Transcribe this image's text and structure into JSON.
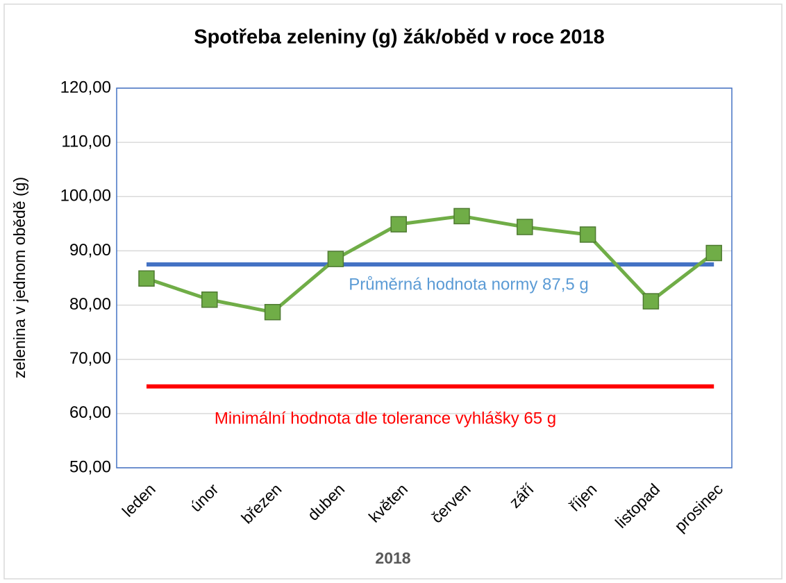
{
  "chart_data": {
    "type": "line",
    "title": "Spotřeba zeleniny (g) žák/oběd v roce 2018",
    "x_label": "2018",
    "y_label": "zelenina v jednom obědě (g)",
    "categories": [
      "leden",
      "únor",
      "březen",
      "duben",
      "květen",
      "červen",
      "září",
      "říjen",
      "listopad",
      "prosinec"
    ],
    "series": [
      {
        "name": "zelenina",
        "color": "#70ad47",
        "values": [
          84.9,
          81.0,
          78.7,
          88.5,
          94.9,
          96.4,
          94.4,
          93.0,
          80.7,
          89.6
        ]
      }
    ],
    "reference_lines": [
      {
        "value": 87.5,
        "label": "Průměrná hodnota normy 87,5 g",
        "color": "#4472c4",
        "label_color": "#5b9bd5"
      },
      {
        "value": 65,
        "label": "Minimální hodnota dle tolerance vyhlášky 65 g",
        "color": "#ff0000",
        "label_color": "#ff0000"
      }
    ],
    "ylim": [
      50,
      120
    ],
    "yticks": [
      {
        "value": 50,
        "label": "50,00"
      },
      {
        "value": 60,
        "label": "60,00"
      },
      {
        "value": 70,
        "label": "70,00"
      },
      {
        "value": 80,
        "label": "80,00"
      },
      {
        "value": 90,
        "label": "90,00"
      },
      {
        "value": 100,
        "label": "100,00"
      },
      {
        "value": 110,
        "label": "110,00"
      },
      {
        "value": 120,
        "label": "120,00"
      }
    ],
    "grid": true
  }
}
